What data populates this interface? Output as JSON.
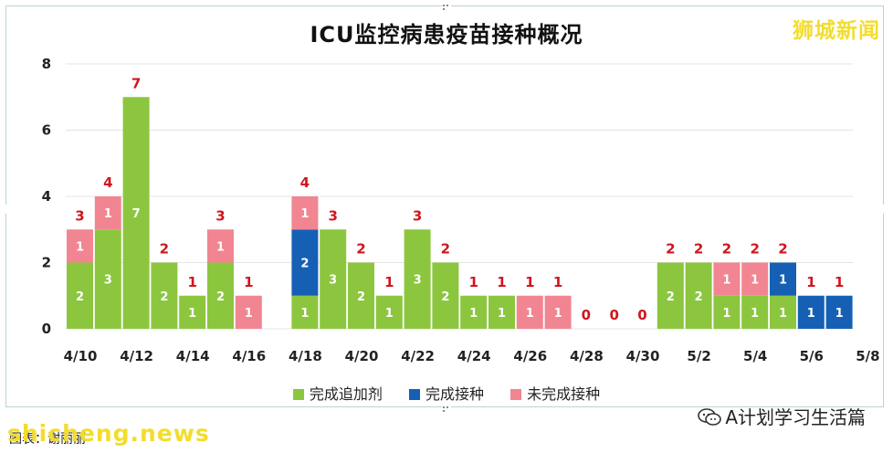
{
  "brand": "狮城新闻",
  "watermark_left": "shicheng.news",
  "source_label": "图表：谢丽丽",
  "wechat_label": "A计划学习生活篇",
  "colors": {
    "完成追加剂": "#8cc63f",
    "完成接种": "#1560b4",
    "未完成接种": "#f28592",
    "label_top": "#d0161e"
  },
  "chart_data": {
    "type": "bar",
    "stacked": true,
    "title": "ICU监控病患疫苗接种概况",
    "x_tick_labels": [
      "4/10",
      "4/12",
      "4/14",
      "4/16",
      "4/18",
      "4/20",
      "4/22",
      "4/24",
      "4/26",
      "4/28",
      "4/30",
      "5/2",
      "5/4",
      "5/6",
      "5/8"
    ],
    "categories": [
      "4/10",
      "4/11",
      "4/12",
      "4/13",
      "4/14",
      "4/15",
      "4/16",
      "4/17",
      "4/18",
      "4/19",
      "4/20",
      "4/21",
      "4/22",
      "4/23",
      "4/24",
      "4/25",
      "4/26",
      "4/27",
      "4/28",
      "4/29",
      "4/30",
      "5/1",
      "5/2",
      "5/3",
      "5/4",
      "5/5",
      "5/6",
      "5/7"
    ],
    "series": [
      {
        "name": "完成追加剂",
        "values": [
          2,
          3,
          7,
          2,
          1,
          2,
          0,
          0,
          1,
          3,
          2,
          1,
          3,
          2,
          1,
          1,
          0,
          0,
          0,
          0,
          0,
          2,
          2,
          1,
          1,
          1,
          0,
          0
        ]
      },
      {
        "name": "完成接种",
        "values": [
          0,
          0,
          0,
          0,
          0,
          0,
          0,
          0,
          2,
          0,
          0,
          0,
          0,
          0,
          0,
          0,
          0,
          0,
          0,
          0,
          0,
          0,
          0,
          0,
          0,
          1,
          1,
          1
        ]
      },
      {
        "name": "未完成接种",
        "values": [
          1,
          1,
          0,
          0,
          0,
          1,
          1,
          0,
          1,
          0,
          0,
          0,
          0,
          0,
          0,
          0,
          1,
          1,
          0,
          0,
          0,
          0,
          0,
          1,
          1,
          0,
          0,
          0
        ]
      }
    ],
    "totals": [
      3,
      4,
      7,
      2,
      1,
      3,
      1,
      null,
      4,
      3,
      2,
      1,
      3,
      2,
      1,
      1,
      1,
      1,
      0,
      0,
      0,
      2,
      2,
      2,
      2,
      2,
      1,
      1
    ],
    "y_ticks": [
      0,
      2,
      4,
      6,
      8
    ],
    "ylim": [
      0,
      8
    ],
    "grid": true,
    "legend_position": "bottom"
  }
}
